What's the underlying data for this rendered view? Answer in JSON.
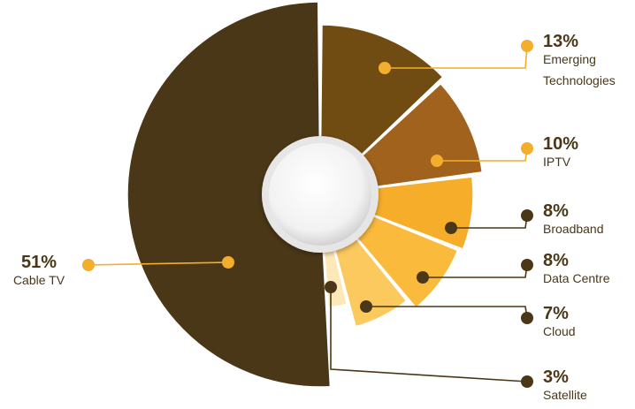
{
  "chart_data": {
    "type": "pie",
    "variant": "donut-exploded-radius",
    "title": "",
    "slices": [
      {
        "label": "Cable TV",
        "value_label": "51%",
        "value": 51,
        "color": "#4a3717",
        "dot_color": "#f3ae2d",
        "text_color": "#4a3717"
      },
      {
        "label": "Emerging Technologies",
        "value_label": "13%",
        "value": 13,
        "color": "#704c12",
        "dot_color": "#f3ae2d",
        "text_color": "#4a3717"
      },
      {
        "label": "IPTV",
        "value_label": "10%",
        "value": 10,
        "color": "#a0621c",
        "dot_color": "#f3ae2d",
        "text_color": "#4a3717"
      },
      {
        "label": "Broadband",
        "value_label": "8%",
        "value": 8,
        "color": "#f6ae2a",
        "dot_color": "#4a3717",
        "text_color": "#4a3717"
      },
      {
        "label": "Data Centre",
        "value_label": "8%",
        "value": 8,
        "color": "#fabb3d",
        "dot_color": "#4a3717",
        "text_color": "#4a3717"
      },
      {
        "label": "Cloud",
        "value_label": "7%",
        "value": 7,
        "color": "#fcc95f",
        "dot_color": "#4a3717",
        "text_color": "#4a3717"
      },
      {
        "label": "Satellite",
        "value_label": "3%",
        "value": 3,
        "color": "#fde8b8",
        "dot_color": "#4a3717",
        "text_color": "#4a3717"
      }
    ],
    "legend": "none"
  }
}
